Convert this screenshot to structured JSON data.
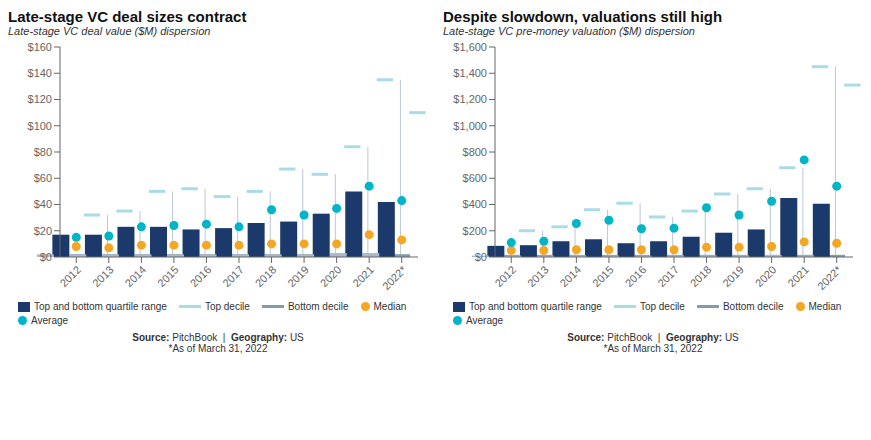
{
  "chart_data": [
    {
      "type": "bar",
      "title": "Late-stage VC deal sizes contract",
      "subtitle": "Late-stage VC deal value ($M) dispersion",
      "categories": [
        "2012",
        "2013",
        "2014",
        "2015",
        "2016",
        "2017",
        "2018",
        "2019",
        "2020",
        "2021",
        "2022*"
      ],
      "series": [
        {
          "name": "Top and bottom quartile range",
          "type": "bar",
          "color": "#1b3a6b",
          "values": [
            17,
            17,
            23,
            23,
            21,
            22,
            26,
            27,
            33,
            50,
            42
          ]
        },
        {
          "type": "bar",
          "color": "#aab8cc",
          "values": [
            2,
            2,
            2,
            2,
            2,
            2,
            2,
            2,
            2,
            3,
            3
          ]
        },
        {
          "name": "Top decile",
          "type": "scatter",
          "marker": "line",
          "color": "#aadce8",
          "values": [
            32,
            35,
            50,
            52,
            46,
            50,
            67,
            63,
            84,
            135,
            110
          ]
        },
        {
          "name": "Bottom decile",
          "type": "scatter",
          "marker": "line",
          "color": "#8899aa",
          "values": [
            1,
            1,
            1,
            1,
            1,
            1,
            1,
            1,
            1,
            1,
            1
          ]
        },
        {
          "name": "Median",
          "type": "scatter",
          "marker": "circle",
          "color": "#f5a623",
          "values": [
            8,
            7,
            9,
            9,
            9,
            9,
            10,
            10,
            10,
            17,
            13
          ]
        },
        {
          "name": "Average",
          "type": "scatter",
          "marker": "circle",
          "color": "#00b5c8",
          "values": [
            15,
            16,
            23,
            24,
            25,
            23,
            36,
            32,
            37,
            54,
            43
          ]
        },
        {
          "type": "range",
          "color": "#b8c8d8",
          "values": [
            [
              1,
              32
            ],
            [
              1,
              35
            ],
            [
              1,
              50
            ],
            [
              1,
              52
            ],
            [
              1,
              46
            ],
            [
              1,
              50
            ],
            [
              1,
              67
            ],
            [
              1,
              63
            ],
            [
              1,
              84
            ],
            [
              1,
              135
            ],
            [
              1,
              110
            ]
          ]
        }
      ],
      "ylim": [
        0,
        160
      ],
      "yticks": [
        {
          "value": 0,
          "label": "$0"
        },
        {
          "value": 20,
          "label": "$20"
        },
        {
          "value": 40,
          "label": "$40"
        },
        {
          "value": 60,
          "label": "$60"
        },
        {
          "value": 80,
          "label": "$80"
        },
        {
          "value": 100,
          "label": "$100"
        },
        {
          "value": 120,
          "label": "$120"
        },
        {
          "value": 140,
          "label": "$140"
        },
        {
          "value": 160,
          "label": "$160"
        }
      ],
      "grid": false,
      "source": [
        "Source:",
        " PitchBook",
        "  |  ",
        "Geography:",
        " US"
      ],
      "note": "*As of March 31, 2022"
    },
    {
      "type": "bar",
      "title": "Despite slowdown, valuations still high",
      "subtitle": "Late-stage VC pre-money valuation ($M) dispersion",
      "categories": [
        "2012",
        "2013",
        "2014",
        "2015",
        "2016",
        "2017",
        "2018",
        "2019",
        "2020",
        "2021",
        "2022*"
      ],
      "series": [
        {
          "name": "Top and bottom quartile range",
          "type": "bar",
          "color": "#1b3a6b",
          "values": [
            85,
            90,
            120,
            135,
            105,
            120,
            155,
            185,
            210,
            450,
            405
          ]
        },
        {
          "type": "bar",
          "color": "#aab8cc",
          "values": [
            10,
            10,
            10,
            12,
            10,
            10,
            12,
            12,
            12,
            15,
            12
          ]
        },
        {
          "name": "Top decile",
          "type": "scatter",
          "marker": "line",
          "color": "#aadce8",
          "values": [
            200,
            230,
            360,
            410,
            305,
            350,
            480,
            520,
            680,
            1450,
            1310
          ]
        },
        {
          "name": "Bottom decile",
          "type": "scatter",
          "marker": "line",
          "color": "#8899aa",
          "values": [
            5,
            5,
            5,
            5,
            5,
            5,
            5,
            5,
            5,
            5,
            5
          ]
        },
        {
          "name": "Median",
          "type": "scatter",
          "marker": "circle",
          "color": "#f5a623",
          "values": [
            50,
            50,
            55,
            55,
            55,
            55,
            75,
            75,
            80,
            115,
            105
          ]
        },
        {
          "name": "Average",
          "type": "scatter",
          "marker": "circle",
          "color": "#00b5c8",
          "values": [
            110,
            120,
            255,
            280,
            215,
            220,
            375,
            320,
            425,
            740,
            540
          ]
        },
        {
          "type": "range",
          "color": "#b8c8d8",
          "values": [
            [
              5,
              200
            ],
            [
              5,
              230
            ],
            [
              5,
              360
            ],
            [
              5,
              410
            ],
            [
              5,
              305
            ],
            [
              5,
              350
            ],
            [
              5,
              480
            ],
            [
              5,
              520
            ],
            [
              5,
              680
            ],
            [
              5,
              1450
            ],
            [
              5,
              1310
            ]
          ]
        }
      ],
      "ylim": [
        0,
        1600
      ],
      "yticks": [
        {
          "value": 0,
          "label": "$0"
        },
        {
          "value": 200,
          "label": "$200"
        },
        {
          "value": 400,
          "label": "$400"
        },
        {
          "value": 600,
          "label": "$600"
        },
        {
          "value": 800,
          "label": "$800"
        },
        {
          "value": 1000,
          "label": "$1,000"
        },
        {
          "value": 1200,
          "label": "$1,200"
        },
        {
          "value": 1400,
          "label": "$1,400"
        },
        {
          "value": 1600,
          "label": "$1,600"
        }
      ],
      "grid": false,
      "source": [
        "Source:",
        " PitchBook",
        "  |  ",
        "Geography:",
        " US"
      ],
      "note": "*As of March 31, 2022"
    }
  ]
}
